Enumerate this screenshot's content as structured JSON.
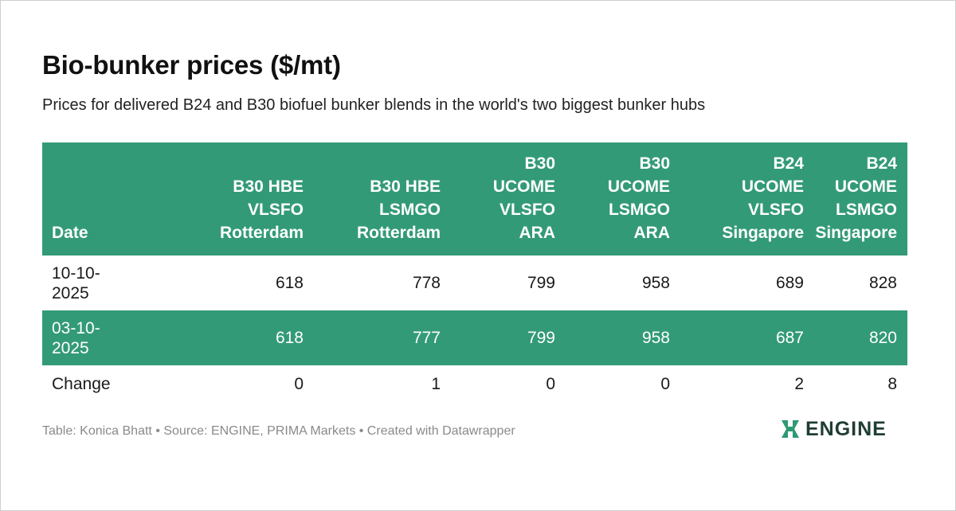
{
  "title": "Bio-bunker prices ($/mt)",
  "subtitle": "Prices for delivered B24 and B30 biofuel bunker blends in the world's two biggest bunker hubs",
  "footer": "Table: Konica Bhatt • Source: ENGINE, PRIMA Markets • Created with Datawrapper",
  "logo": {
    "text": "ENGINE",
    "icon": "engine-logo-icon"
  },
  "colors": {
    "header_bg": "#339a78",
    "logo_accent": "#2e9a73",
    "text": "#1a1a1a",
    "muted": "#8a8a8a"
  },
  "table": {
    "columns": [
      [
        "Date"
      ],
      [
        "B30 HBE",
        "VLSFO",
        "Rotterdam"
      ],
      [
        "B30 HBE",
        "LSMGO",
        "Rotterdam"
      ],
      [
        "B30",
        "UCOME",
        "VLSFO",
        "ARA"
      ],
      [
        "B30",
        "UCOME",
        "LSMGO",
        "ARA"
      ],
      [
        "B24",
        "UCOME",
        "VLSFO",
        "Singapore"
      ],
      [
        "B24",
        "UCOME",
        "LSMGO",
        "Singapore"
      ]
    ],
    "rows": [
      {
        "date": [
          "10-10-",
          "2025"
        ],
        "values": [
          "618",
          "778",
          "799",
          "958",
          "689",
          "828"
        ]
      },
      {
        "date": [
          "03-10-",
          "2025"
        ],
        "values": [
          "618",
          "777",
          "799",
          "958",
          "687",
          "820"
        ]
      },
      {
        "date": [
          "Change"
        ],
        "values": [
          "0",
          "1",
          "0",
          "0",
          "2",
          "8"
        ]
      }
    ]
  },
  "chart_data": {
    "type": "table",
    "title": "Bio-bunker prices ($/mt)",
    "subtitle": "Prices for delivered B24 and B30 biofuel bunker blends in the world's two biggest bunker hubs",
    "columns": [
      "Date",
      "B30 HBE VLSFO Rotterdam",
      "B30 HBE LSMGO Rotterdam",
      "B30 UCOME VLSFO ARA",
      "B30 UCOME LSMGO ARA",
      "B24 UCOME VLSFO Singapore",
      "B24 UCOME LSMGO Singapore"
    ],
    "rows": [
      [
        "10-10-2025",
        618,
        778,
        799,
        958,
        689,
        828
      ],
      [
        "03-10-2025",
        618,
        777,
        799,
        958,
        687,
        820
      ],
      [
        "Change",
        0,
        1,
        0,
        0,
        2,
        8
      ]
    ]
  }
}
